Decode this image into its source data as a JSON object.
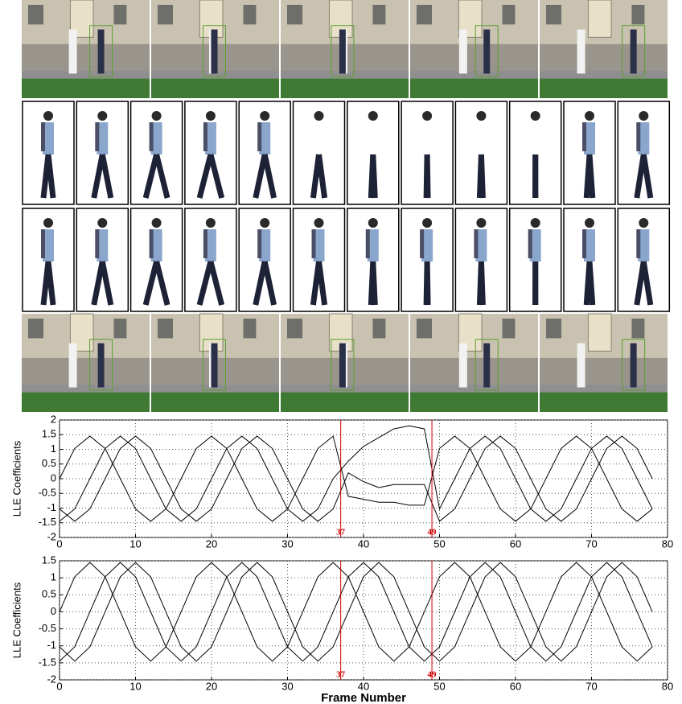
{
  "chart_data": [
    {
      "type": "line",
      "ylabel": "LLE Coefficients",
      "x": [
        0,
        2,
        4,
        6,
        8,
        10,
        12,
        14,
        16,
        18,
        20,
        22,
        24,
        26,
        28,
        30,
        32,
        34,
        36,
        38,
        40,
        42,
        44,
        46,
        48,
        50,
        52,
        54,
        56,
        58,
        60,
        62,
        64,
        66,
        68,
        70,
        72,
        74,
        76,
        78
      ],
      "xlim": [
        0,
        80
      ],
      "xticks": [
        0,
        10,
        20,
        30,
        40,
        50,
        60,
        70,
        80
      ],
      "ylim": [
        -2,
        2
      ],
      "yticks": [
        -2,
        -1.5,
        -1,
        -0.5,
        0,
        0.5,
        1,
        1.5,
        2
      ],
      "grid": true,
      "markers": [
        {
          "x": 37,
          "color": "#cc0000"
        },
        {
          "x": 49,
          "color": "#cc0000"
        }
      ],
      "series": [
        {
          "color": "#000000",
          "values": [
            -1.45,
            -1.03,
            0,
            1.03,
            1.45,
            1.03,
            0,
            -1.03,
            -1.45,
            -1.03,
            0,
            1.03,
            1.45,
            1.03,
            0,
            -1.03,
            -1.45,
            -1.03,
            0,
            0.6,
            1.1,
            1.4,
            1.7,
            1.8,
            1.7,
            -1.03,
            0,
            1.03,
            1.45,
            1.03,
            0,
            -1.03,
            -1.45,
            -1.03,
            0,
            1.03,
            1.45,
            1.03,
            0,
            -1.03
          ]
        },
        {
          "color": "#000000",
          "values": [
            -1.03,
            -1.45,
            -1.03,
            0,
            1.03,
            1.45,
            1.03,
            0,
            -1.03,
            -1.45,
            -1.03,
            0,
            1.03,
            1.45,
            1.03,
            0,
            -1.03,
            -1.45,
            -1.03,
            0.2,
            -0.1,
            -0.3,
            -0.2,
            -0.2,
            -0.2,
            -1.45,
            -1.03,
            0,
            1.03,
            1.45,
            1.03,
            0,
            -1.03,
            -1.45,
            -1.03,
            0,
            1.03,
            1.45,
            1.03,
            0
          ]
        },
        {
          "color": "#000000",
          "values": [
            0,
            1.03,
            1.45,
            1.03,
            0,
            -1.03,
            -1.45,
            -1.03,
            0,
            1.03,
            1.45,
            1.03,
            0,
            -1.03,
            -1.45,
            -1.03,
            0,
            1.03,
            1.45,
            -0.6,
            -0.7,
            -0.8,
            -0.8,
            -0.9,
            -0.9,
            1.03,
            1.45,
            1.03,
            0,
            -1.03,
            -1.45,
            -1.03,
            0,
            1.03,
            1.45,
            1.03,
            0,
            -1.03,
            -1.45,
            -1.03
          ]
        }
      ]
    },
    {
      "type": "line",
      "ylabel": "LLE Coefficients",
      "xlabel": "Frame Number",
      "x": [
        0,
        2,
        4,
        6,
        8,
        10,
        12,
        14,
        16,
        18,
        20,
        22,
        24,
        26,
        28,
        30,
        32,
        34,
        36,
        38,
        40,
        42,
        44,
        46,
        48,
        50,
        52,
        54,
        56,
        58,
        60,
        62,
        64,
        66,
        68,
        70,
        72,
        74,
        76,
        78
      ],
      "xlim": [
        0,
        80
      ],
      "xticks": [
        0,
        10,
        20,
        30,
        40,
        50,
        60,
        70,
        80
      ],
      "ylim": [
        -2,
        1.5
      ],
      "yticks": [
        -2,
        -1.5,
        -1,
        -0.5,
        0,
        0.5,
        1,
        1.5
      ],
      "grid": true,
      "markers": [
        {
          "x": 37,
          "color": "#cc0000"
        },
        {
          "x": 49,
          "color": "#cc0000"
        }
      ],
      "series": [
        {
          "color": "#000000",
          "values": [
            -1.45,
            -1.03,
            0,
            1.03,
            1.45,
            1.03,
            0,
            -1.03,
            -1.45,
            -1.03,
            0,
            1.03,
            1.45,
            1.03,
            0,
            -1.03,
            -1.45,
            -1.03,
            0,
            1.03,
            1.45,
            1.03,
            0,
            -1.03,
            -1.45,
            -1.03,
            0,
            1.03,
            1.45,
            1.03,
            0,
            -1.03,
            -1.45,
            -1.03,
            0,
            1.03,
            1.45,
            1.03,
            0,
            -1.03
          ]
        },
        {
          "color": "#000000",
          "values": [
            -1.03,
            -1.45,
            -1.03,
            0,
            1.03,
            1.45,
            1.03,
            0,
            -1.03,
            -1.45,
            -1.03,
            0,
            1.03,
            1.45,
            1.03,
            0,
            -1.03,
            -1.45,
            -1.03,
            0,
            1.03,
            1.45,
            1.03,
            0,
            -1.03,
            -1.45,
            -1.03,
            0,
            1.03,
            1.45,
            1.03,
            0,
            -1.03,
            -1.45,
            -1.03,
            0,
            1.03,
            1.45,
            1.03,
            0
          ]
        },
        {
          "color": "#000000",
          "values": [
            0,
            1.03,
            1.45,
            1.03,
            0,
            -1.03,
            -1.45,
            -1.03,
            0,
            1.03,
            1.45,
            1.03,
            0,
            -1.03,
            -1.45,
            -1.03,
            0,
            1.03,
            1.45,
            1.03,
            0,
            -1.03,
            -1.45,
            -1.03,
            0,
            1.03,
            1.45,
            1.03,
            0,
            -1.03,
            -1.45,
            -1.03,
            0,
            1.03,
            1.45,
            1.03,
            0,
            -1.03,
            -1.45,
            -1.03
          ]
        }
      ]
    }
  ]
}
